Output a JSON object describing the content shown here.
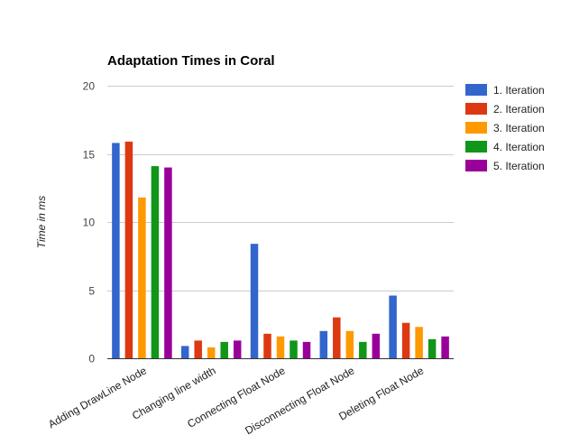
{
  "chart_data": {
    "type": "bar",
    "title": "Adaptation Times in Coral",
    "xlabel": "",
    "ylabel": "Time in ms",
    "ylim": [
      0,
      20
    ],
    "yticks": [
      0,
      5,
      10,
      15,
      20
    ],
    "grid": true,
    "legend_position": "right",
    "categories": [
      "Adding DrawLine Node",
      "Changing line width",
      "Connecting Float Node",
      "Disconnecting Float Node",
      "Deleting Float Node"
    ],
    "series": [
      {
        "name": "1. Iteration",
        "color": "#3366cc",
        "values": [
          15.8,
          0.9,
          8.4,
          2.0,
          4.6
        ]
      },
      {
        "name": "2. Iteration",
        "color": "#dc3912",
        "values": [
          15.9,
          1.3,
          1.8,
          3.0,
          2.6
        ]
      },
      {
        "name": "3. Iteration",
        "color": "#ff9900",
        "values": [
          11.8,
          0.8,
          1.6,
          2.0,
          2.3
        ]
      },
      {
        "name": "4. Iteration",
        "color": "#109618",
        "values": [
          14.1,
          1.2,
          1.3,
          1.2,
          1.4
        ]
      },
      {
        "name": "5. Iteration",
        "color": "#990099",
        "values": [
          14.0,
          1.3,
          1.2,
          1.8,
          1.6
        ]
      }
    ]
  }
}
